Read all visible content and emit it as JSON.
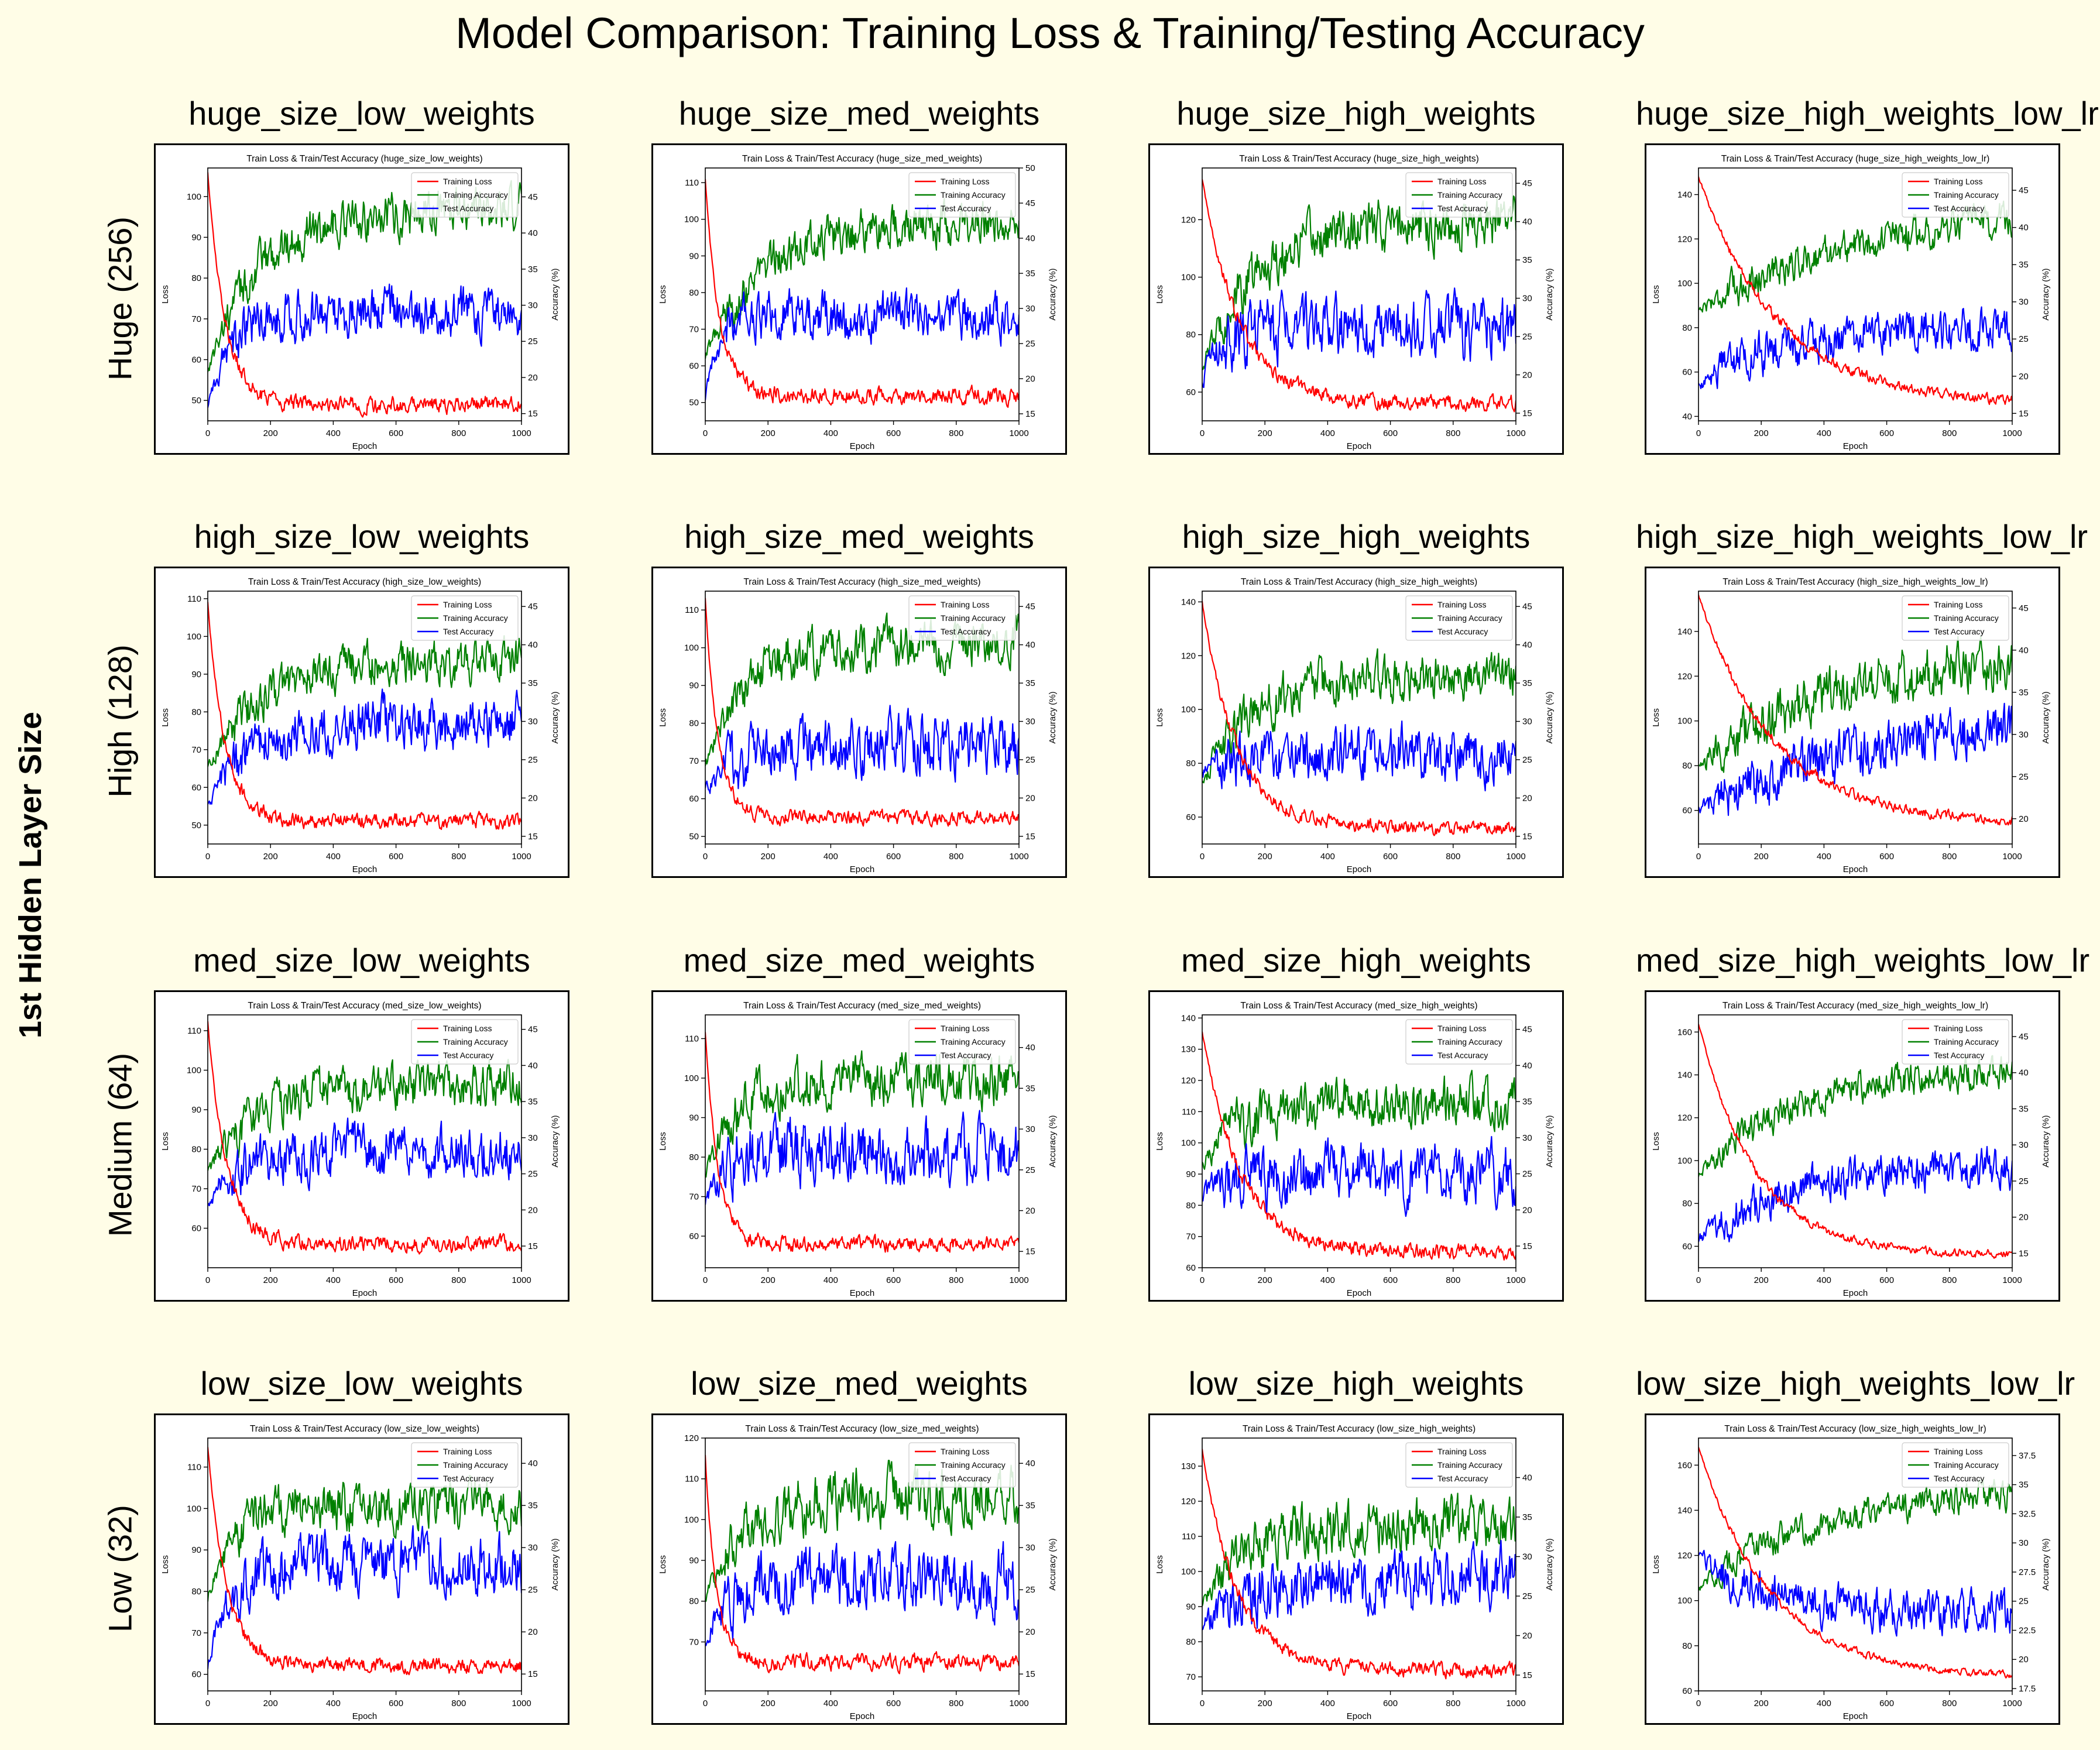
{
  "figure_title": "Model Comparison: Training Loss & Training/Testing Accuracy",
  "y_super_label": "1st Hidden Layer Size",
  "row_labels": [
    "Huge (256)",
    "High (128)",
    "Medium (64)",
    "Low (32)"
  ],
  "colors": {
    "background": "#fffde7",
    "training_loss": "#ff0000",
    "training_accuracy": "#008000",
    "test_accuracy": "#0000ff"
  },
  "chart_data": [
    {
      "type": "line",
      "panel_title": "huge_size_low_weights",
      "title": "Train Loss & Train/Test Accuracy (huge_size_low_weights)",
      "xlabel": "Epoch",
      "ylabel": "Loss",
      "ylabel_right": "Accuracy (%)",
      "xlim": [
        0,
        1000
      ],
      "ylim": [
        45,
        107
      ],
      "ylim_right": [
        14,
        49
      ],
      "x_ticks": [
        0,
        200,
        400,
        600,
        800,
        1000
      ],
      "y_ticks": [
        50,
        60,
        70,
        80,
        90,
        100
      ],
      "y_ticks_right": [
        15,
        20,
        25,
        30,
        35,
        40,
        45
      ],
      "legend": [
        "Training Loss",
        "Training Accuracy",
        "Test Accuracy"
      ],
      "legend_position": "top-right",
      "loss": {
        "start": 106,
        "end": 49,
        "tau": 55,
        "noise": 1.6
      },
      "train_acc": {
        "start": 21,
        "end": 43,
        "tau": 160,
        "noise": 2.4
      },
      "test_acc": {
        "start": 16,
        "end": 29,
        "tau": 70,
        "noise": 2.6
      }
    },
    {
      "type": "line",
      "panel_title": "huge_size_med_weights",
      "title": "Train Loss & Train/Test Accuracy (huge_size_med_weights)",
      "xlabel": "Epoch",
      "ylabel": "Loss",
      "ylabel_right": "Accuracy (%)",
      "xlim": [
        0,
        1000
      ],
      "ylim": [
        45,
        114
      ],
      "ylim_right": [
        14,
        50
      ],
      "x_ticks": [
        0,
        200,
        400,
        600,
        800,
        1000
      ],
      "y_ticks": [
        50,
        60,
        70,
        80,
        90,
        100,
        110
      ],
      "y_ticks_right": [
        15,
        20,
        25,
        30,
        35,
        40,
        45,
        50
      ],
      "legend": [
        "Training Loss",
        "Training Accuracy",
        "Test Accuracy"
      ],
      "legend_position": "top-right",
      "loss": {
        "start": 111,
        "end": 52,
        "tau": 45,
        "noise": 1.8
      },
      "train_acc": {
        "start": 23,
        "end": 42,
        "tau": 170,
        "noise": 2.4
      },
      "test_acc": {
        "start": 17,
        "end": 29,
        "tau": 40,
        "noise": 2.6
      }
    },
    {
      "type": "line",
      "panel_title": "huge_size_high_weights",
      "title": "Train Loss & Train/Test Accuracy (huge_size_high_weights)",
      "xlabel": "Epoch",
      "ylabel": "Loss",
      "ylabel_right": "Accuracy (%)",
      "xlim": [
        0,
        1000
      ],
      "ylim": [
        50,
        138
      ],
      "ylim_right": [
        14,
        47
      ],
      "x_ticks": [
        0,
        200,
        400,
        600,
        800,
        1000
      ],
      "y_ticks": [
        60,
        80,
        100,
        120
      ],
      "y_ticks_right": [
        15,
        20,
        25,
        30,
        35,
        40,
        45
      ],
      "legend": [
        "Training Loss",
        "Training Accuracy",
        "Test Accuracy"
      ],
      "legend_position": "top-right",
      "loss": {
        "start": 134,
        "end": 56,
        "tau": 120,
        "noise": 2.0
      },
      "train_acc": {
        "start": 21,
        "end": 40,
        "tau": 170,
        "noise": 2.6
      },
      "test_acc": {
        "start": 19,
        "end": 26,
        "tau": 60,
        "noise": 3.2
      }
    },
    {
      "type": "line",
      "panel_title": "huge_size_high_weights_low_lr",
      "title": "Train Loss & Train/Test Accuracy (huge_size_high_weights_low_lr)",
      "xlabel": "Epoch",
      "ylabel": "Loss",
      "ylabel_right": "Accuracy (%)",
      "xlim": [
        0,
        1000
      ],
      "ylim": [
        38,
        152
      ],
      "ylim_right": [
        14,
        48
      ],
      "x_ticks": [
        0,
        200,
        400,
        600,
        800,
        1000
      ],
      "y_ticks": [
        40,
        60,
        80,
        100,
        120,
        140
      ],
      "y_ticks_right": [
        15,
        20,
        25,
        30,
        35,
        40,
        45
      ],
      "legend": [
        "Training Loss",
        "Training Accuracy",
        "Test Accuracy"
      ],
      "legend_position": "top-right",
      "loss": {
        "start": 148,
        "end": 45,
        "tau": 260,
        "noise": 1.8
      },
      "train_acc": {
        "start": 29,
        "end": 43,
        "tau": 520,
        "noise": 1.8
      },
      "test_acc": {
        "start": 19,
        "end": 27,
        "tau": 300,
        "noise": 2.3
      }
    },
    {
      "type": "line",
      "panel_title": "high_size_low_weights",
      "title": "Train Loss & Train/Test Accuracy (high_size_low_weights)",
      "xlabel": "Epoch",
      "ylabel": "Loss",
      "ylabel_right": "Accuracy (%)",
      "xlim": [
        0,
        1000
      ],
      "ylim": [
        45,
        112
      ],
      "ylim_right": [
        14,
        47
      ],
      "x_ticks": [
        0,
        200,
        400,
        600,
        800,
        1000
      ],
      "y_ticks": [
        50,
        60,
        70,
        80,
        90,
        100,
        110
      ],
      "y_ticks_right": [
        15,
        20,
        25,
        30,
        35,
        40,
        45
      ],
      "legend": [
        "Training Loss",
        "Training Accuracy",
        "Test Accuracy"
      ],
      "legend_position": "top-right",
      "loss": {
        "start": 109,
        "end": 51,
        "tau": 55,
        "noise": 1.6
      },
      "train_acc": {
        "start": 24,
        "end": 38,
        "tau": 170,
        "noise": 2.2
      },
      "test_acc": {
        "start": 19,
        "end": 30,
        "tau": 130,
        "noise": 2.6
      }
    },
    {
      "type": "line",
      "panel_title": "high_size_med_weights",
      "title": "Train Loss & Train/Test Accuracy (high_size_med_weights)",
      "xlabel": "Epoch",
      "ylabel": "Loss",
      "ylabel_right": "Accuracy (%)",
      "xlim": [
        0,
        1000
      ],
      "ylim": [
        48,
        115
      ],
      "ylim_right": [
        14,
        47
      ],
      "x_ticks": [
        0,
        200,
        400,
        600,
        800,
        1000
      ],
      "y_ticks": [
        50,
        60,
        70,
        80,
        90,
        100,
        110
      ],
      "y_ticks_right": [
        15,
        20,
        25,
        30,
        35,
        40,
        45
      ],
      "legend": [
        "Training Loss",
        "Training Accuracy",
        "Test Accuracy"
      ],
      "legend_position": "top-right",
      "loss": {
        "start": 113,
        "end": 55,
        "tau": 40,
        "noise": 1.5
      },
      "train_acc": {
        "start": 24,
        "end": 40,
        "tau": 120,
        "noise": 2.4
      },
      "test_acc": {
        "start": 21,
        "end": 27,
        "tau": 90,
        "noise": 3.0
      }
    },
    {
      "type": "line",
      "panel_title": "high_size_high_weights",
      "title": "Train Loss & Train/Test Accuracy (high_size_high_weights)",
      "xlabel": "Epoch",
      "ylabel": "Loss",
      "ylabel_right": "Accuracy (%)",
      "xlim": [
        0,
        1000
      ],
      "ylim": [
        50,
        144
      ],
      "ylim_right": [
        14,
        47
      ],
      "x_ticks": [
        0,
        200,
        400,
        600,
        800,
        1000
      ],
      "y_ticks": [
        60,
        80,
        100,
        120,
        140
      ],
      "y_ticks_right": [
        15,
        20,
        25,
        30,
        35,
        40,
        45
      ],
      "legend": [
        "Training Loss",
        "Training Accuracy",
        "Test Accuracy"
      ],
      "legend_position": "top-right",
      "loss": {
        "start": 140,
        "end": 56,
        "tau": 110,
        "noise": 2.0
      },
      "train_acc": {
        "start": 22,
        "end": 36,
        "tau": 160,
        "noise": 2.4
      },
      "test_acc": {
        "start": 23,
        "end": 26,
        "tau": 150,
        "noise": 2.8
      }
    },
    {
      "type": "line",
      "panel_title": "high_size_high_weights_low_lr",
      "title": "Train Loss & Train/Test Accuracy (high_size_high_weights_low_lr)",
      "xlabel": "Epoch",
      "ylabel": "Loss",
      "ylabel_right": "Accuracy (%)",
      "xlim": [
        0,
        1000
      ],
      "ylim": [
        45,
        158
      ],
      "ylim_right": [
        17,
        47
      ],
      "x_ticks": [
        0,
        200,
        400,
        600,
        800,
        1000
      ],
      "y_ticks": [
        60,
        80,
        100,
        120,
        140
      ],
      "y_ticks_right": [
        20,
        25,
        30,
        35,
        40,
        45
      ],
      "legend": [
        "Training Loss",
        "Training Accuracy",
        "Test Accuracy"
      ],
      "legend_position": "top-right",
      "loss": {
        "start": 156,
        "end": 54,
        "tau": 240,
        "noise": 1.8
      },
      "train_acc": {
        "start": 26,
        "end": 40,
        "tau": 450,
        "noise": 2.4
      },
      "test_acc": {
        "start": 21,
        "end": 33,
        "tau": 550,
        "noise": 2.4
      }
    },
    {
      "type": "line",
      "panel_title": "med_size_low_weights",
      "title": "Train Loss & Train/Test Accuracy (med_size_low_weights)",
      "xlabel": "Epoch",
      "ylabel": "Loss",
      "ylabel_right": "Accuracy (%)",
      "xlim": [
        0,
        1000
      ],
      "ylim": [
        50,
        114
      ],
      "ylim_right": [
        12,
        47
      ],
      "x_ticks": [
        0,
        200,
        400,
        600,
        800,
        1000
      ],
      "y_ticks": [
        60,
        70,
        80,
        90,
        100,
        110
      ],
      "y_ticks_right": [
        15,
        20,
        25,
        30,
        35,
        40,
        45
      ],
      "legend": [
        "Training Loss",
        "Training Accuracy",
        "Test Accuracy"
      ],
      "legend_position": "top-right",
      "loss": {
        "start": 112,
        "end": 56,
        "tau": 60,
        "noise": 1.6
      },
      "train_acc": {
        "start": 25,
        "end": 37,
        "tau": 140,
        "noise": 2.4
      },
      "test_acc": {
        "start": 20,
        "end": 28,
        "tau": 90,
        "noise": 2.8
      }
    },
    {
      "type": "line",
      "panel_title": "med_size_med_weights",
      "title": "Train Loss & Train/Test Accuracy (med_size_med_weights)",
      "xlabel": "Epoch",
      "ylabel": "Loss",
      "ylabel_right": "Accuracy (%)",
      "xlim": [
        0,
        1000
      ],
      "ylim": [
        52,
        116
      ],
      "ylim_right": [
        13,
        44
      ],
      "x_ticks": [
        0,
        200,
        400,
        600,
        800,
        1000
      ],
      "y_ticks": [
        60,
        70,
        80,
        90,
        100,
        110
      ],
      "y_ticks_right": [
        15,
        20,
        25,
        30,
        35,
        40
      ],
      "legend": [
        "Training Loss",
        "Training Accuracy",
        "Test Accuracy"
      ],
      "legend_position": "top-right",
      "loss": {
        "start": 112,
        "end": 58,
        "tau": 40,
        "noise": 1.5
      },
      "train_acc": {
        "start": 24,
        "end": 36,
        "tau": 90,
        "noise": 2.4
      },
      "test_acc": {
        "start": 20,
        "end": 27,
        "tau": 40,
        "noise": 3.0
      }
    },
    {
      "type": "line",
      "panel_title": "med_size_high_weights",
      "title": "Train Loss & Train/Test Accuracy (med_size_high_weights)",
      "xlabel": "Epoch",
      "ylabel": "Loss",
      "ylabel_right": "Accuracy (%)",
      "xlim": [
        0,
        1000
      ],
      "ylim": [
        60,
        141
      ],
      "ylim_right": [
        12,
        47
      ],
      "x_ticks": [
        0,
        200,
        400,
        600,
        800,
        1000
      ],
      "y_ticks": [
        60,
        70,
        80,
        90,
        100,
        110,
        120,
        130,
        140
      ],
      "y_ticks_right": [
        15,
        20,
        25,
        30,
        35,
        40,
        45
      ],
      "legend": [
        "Training Loss",
        "Training Accuracy",
        "Test Accuracy"
      ],
      "legend_position": "top-right",
      "loss": {
        "start": 136,
        "end": 65,
        "tau": 120,
        "noise": 1.8
      },
      "train_acc": {
        "start": 26,
        "end": 35,
        "tau": 120,
        "noise": 2.6
      },
      "test_acc": {
        "start": 22,
        "end": 25,
        "tau": 100,
        "noise": 3.2
      }
    },
    {
      "type": "line",
      "panel_title": "med_size_high_weights_low_lr",
      "title": "Train Loss & Train/Test Accuracy (med_size_high_weights_low_lr)",
      "xlabel": "Epoch",
      "ylabel": "Loss",
      "ylabel_right": "Accuracy (%)",
      "xlim": [
        0,
        1000
      ],
      "ylim": [
        50,
        168
      ],
      "ylim_right": [
        13,
        48
      ],
      "x_ticks": [
        0,
        200,
        400,
        600,
        800,
        1000
      ],
      "y_ticks": [
        60,
        80,
        100,
        120,
        140,
        160
      ],
      "y_ticks_right": [
        15,
        20,
        25,
        30,
        35,
        40,
        45
      ],
      "legend": [
        "Training Loss",
        "Training Accuracy",
        "Test Accuracy"
      ],
      "legend_position": "top-right",
      "loss": {
        "start": 164,
        "end": 56,
        "tau": 180,
        "noise": 1.5
      },
      "train_acc": {
        "start": 26,
        "end": 41,
        "tau": 320,
        "noise": 1.8
      },
      "test_acc": {
        "start": 17,
        "end": 27,
        "tau": 260,
        "noise": 2.2
      }
    },
    {
      "type": "line",
      "panel_title": "low_size_low_weights",
      "title": "Train Loss & Train/Test Accuracy (low_size_low_weights)",
      "xlabel": "Epoch",
      "ylabel": "Loss",
      "ylabel_right": "Accuracy (%)",
      "xlim": [
        0,
        1000
      ],
      "ylim": [
        56,
        117
      ],
      "ylim_right": [
        13,
        43
      ],
      "x_ticks": [
        0,
        200,
        400,
        600,
        800,
        1000
      ],
      "y_ticks": [
        60,
        70,
        80,
        90,
        100,
        110
      ],
      "y_ticks_right": [
        15,
        20,
        25,
        30,
        35,
        40
      ],
      "legend": [
        "Training Loss",
        "Training Accuracy",
        "Test Accuracy"
      ],
      "legend_position": "top-right",
      "loss": {
        "start": 115,
        "end": 62,
        "tau": 60,
        "noise": 1.4
      },
      "train_acc": {
        "start": 24,
        "end": 35,
        "tau": 80,
        "noise": 2.2
      },
      "test_acc": {
        "start": 16,
        "end": 28,
        "tau": 70,
        "noise": 2.6
      }
    },
    {
      "type": "line",
      "panel_title": "low_size_med_weights",
      "title": "Train Loss & Train/Test Accuracy (low_size_med_weights)",
      "xlabel": "Epoch",
      "ylabel": "Loss",
      "ylabel_right": "Accuracy (%)",
      "xlim": [
        0,
        1000
      ],
      "ylim": [
        58,
        120
      ],
      "ylim_right": [
        13,
        43
      ],
      "x_ticks": [
        0,
        200,
        400,
        600,
        800,
        1000
      ],
      "y_ticks": [
        70,
        80,
        90,
        100,
        110,
        120
      ],
      "y_ticks_right": [
        15,
        20,
        25,
        30,
        35,
        40
      ],
      "legend": [
        "Training Loss",
        "Training Accuracy",
        "Test Accuracy"
      ],
      "legend_position": "top-right",
      "loss": {
        "start": 116,
        "end": 65,
        "tau": 35,
        "noise": 1.5
      },
      "train_acc": {
        "start": 24,
        "end": 36,
        "tau": 120,
        "noise": 2.6
      },
      "test_acc": {
        "start": 19,
        "end": 26,
        "tau": 80,
        "noise": 3.0
      }
    },
    {
      "type": "line",
      "panel_title": "low_size_high_weights",
      "title": "Train Loss & Train/Test Accuracy (low_size_high_weights)",
      "xlabel": "Epoch",
      "ylabel": "Loss",
      "ylabel_right": "Accuracy (%)",
      "xlim": [
        0,
        1000
      ],
      "ylim": [
        66,
        138
      ],
      "ylim_right": [
        13,
        45
      ],
      "x_ticks": [
        0,
        200,
        400,
        600,
        800,
        1000
      ],
      "y_ticks": [
        70,
        80,
        90,
        100,
        110,
        120,
        130
      ],
      "y_ticks_right": [
        15,
        20,
        25,
        30,
        35,
        40
      ],
      "legend": [
        "Training Loss",
        "Training Accuracy",
        "Test Accuracy"
      ],
      "legend_position": "top-right",
      "loss": {
        "start": 135,
        "end": 72,
        "tau": 110,
        "noise": 1.6
      },
      "train_acc": {
        "start": 24,
        "end": 34,
        "tau": 130,
        "noise": 2.6
      },
      "test_acc": {
        "start": 21,
        "end": 27,
        "tau": 120,
        "noise": 3.0
      }
    },
    {
      "type": "line",
      "panel_title": "low_size_high_weights_low_lr",
      "title": "Train Loss & Train/Test Accuracy (low_size_high_weights_low_lr)",
      "xlabel": "Epoch",
      "ylabel": "Loss",
      "ylabel_right": "Accuracy (%)",
      "xlim": [
        0,
        1000
      ],
      "ylim": [
        60,
        172
      ],
      "ylim_right": [
        17.3,
        39
      ],
      "x_ticks": [
        0,
        200,
        400,
        600,
        800,
        1000
      ],
      "y_ticks": [
        60,
        80,
        100,
        120,
        140,
        160
      ],
      "y_ticks_right": [
        17.5,
        20.0,
        22.5,
        25.0,
        27.5,
        30.0,
        32.5,
        35.0,
        37.5
      ],
      "legend": [
        "Training Loss",
        "Training Accuracy",
        "Test Accuracy"
      ],
      "legend_position": "top-right",
      "loss": {
        "start": 168,
        "end": 66,
        "tau": 230,
        "noise": 1.3
      },
      "train_acc": {
        "start": 26,
        "end": 34.5,
        "tau": 350,
        "noise": 1.0
      },
      "test_acc": {
        "start": 29,
        "end": 24,
        "tau": 200,
        "noise": 1.4
      }
    }
  ]
}
